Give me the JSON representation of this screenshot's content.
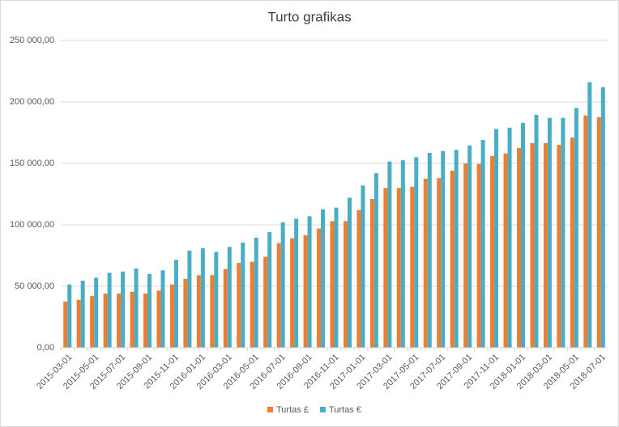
{
  "chart_data": {
    "type": "bar",
    "title": "Turto grafikas",
    "categories": [
      "2015-03-01",
      null,
      "2015-05-01",
      null,
      "2015-07-01",
      null,
      "2015-09-01",
      null,
      "2015-11-01",
      null,
      "2016-01-01",
      null,
      "2016-03-01",
      null,
      "2016-05-01",
      null,
      "2016-07-01",
      null,
      "2016-09-01",
      null,
      "2016-11-01",
      null,
      "2017-01-01",
      null,
      "2017-03-01",
      null,
      "2017-05-01",
      null,
      "2017-07-01",
      null,
      "2017-09-01",
      null,
      "2017-11-01",
      null,
      "2018-01-01",
      null,
      "2018-03-01",
      null,
      "2018-05-01",
      null,
      "2018-07-01"
    ],
    "series": [
      {
        "name": "Turtas £",
        "color": "#ed7d31",
        "values": [
          37500,
          39000,
          42000,
          44000,
          44000,
          45500,
          44000,
          46500,
          51500,
          56000,
          59000,
          59000,
          64000,
          69000,
          70000,
          74000,
          85000,
          89000,
          91500,
          97000,
          103000,
          103000,
          112000,
          121000,
          130000,
          130000,
          131000,
          137500,
          138000,
          144000,
          150000,
          149500,
          156000,
          158000,
          162500,
          166500,
          166500,
          165000,
          171000,
          189000,
          187500
        ]
      },
      {
        "name": "Turtas €",
        "color": "#4bacc6",
        "values": [
          51500,
          54500,
          57000,
          61000,
          62000,
          64500,
          60000,
          63000,
          71500,
          79000,
          81000,
          78000,
          82000,
          85500,
          89500,
          94000,
          102000,
          105000,
          107000,
          112500,
          114000,
          122000,
          132000,
          142000,
          151500,
          152500,
          155000,
          158500,
          160000,
          161000,
          164500,
          169000,
          178000,
          179000,
          183000,
          189500,
          187000,
          187000,
          195000,
          216000,
          212000
        ]
      }
    ],
    "ylim": [
      0,
      250000
    ],
    "yticks": [
      {
        "value": 0,
        "label": "0,00"
      },
      {
        "value": 50000,
        "label": "50 000,00"
      },
      {
        "value": 100000,
        "label": "100 000,00"
      },
      {
        "value": 150000,
        "label": "150 000,00"
      },
      {
        "value": 200000,
        "label": "200 000,00"
      },
      {
        "value": 250000,
        "label": "250 000,00"
      }
    ],
    "grid": true,
    "legend": "bottom"
  }
}
